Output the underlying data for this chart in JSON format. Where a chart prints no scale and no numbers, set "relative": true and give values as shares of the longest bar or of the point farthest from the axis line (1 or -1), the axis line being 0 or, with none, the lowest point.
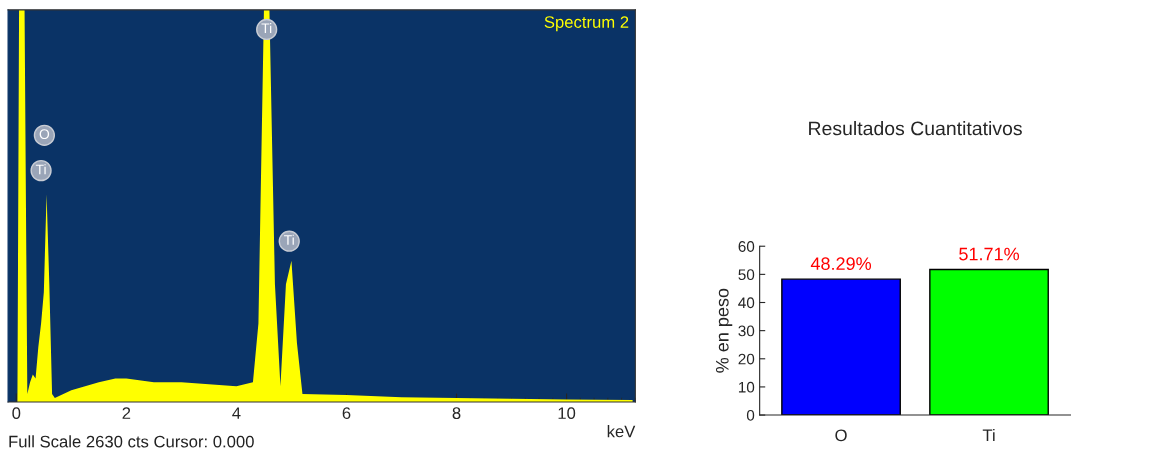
{
  "chart_data": [
    {
      "type": "area",
      "relative": true,
      "xlabel": "keV",
      "xlim": [
        -0.15,
        11.25
      ],
      "xticks": [
        0,
        2,
        4,
        6,
        8,
        10
      ],
      "grid": false,
      "legend": false,
      "x": [
        0.02,
        0.05,
        0.15,
        0.2,
        0.25,
        0.3,
        0.35,
        0.4,
        0.45,
        0.5,
        0.55,
        0.6,
        0.65,
        0.7,
        1.0,
        1.5,
        1.8,
        2.0,
        2.5,
        3.0,
        3.5,
        4.0,
        4.3,
        4.4,
        4.5,
        4.6,
        4.7,
        4.8,
        4.9,
        5.0,
        5.1,
        5.2,
        6,
        7,
        8,
        9,
        10,
        11.2
      ],
      "series": [
        {
          "color": "#ffff00",
          "values": [
            0,
            1,
            1,
            0.02,
            0.05,
            0.07,
            0.06,
            0.14,
            0.2,
            0.28,
            0.53,
            0.3,
            0.02,
            0.01,
            0.03,
            0.05,
            0.06,
            0.06,
            0.05,
            0.05,
            0.045,
            0.04,
            0.05,
            0.2,
            1,
            1,
            0.3,
            0.04,
            0.3,
            0.36,
            0.15,
            0.02,
            0.018,
            0.012,
            0.01,
            0.008,
            0.006,
            0.005
          ]
        }
      ],
      "annotations": [
        "Spectrum 2",
        "Full Scale 2630 cts Cursor: 0.000",
        {
          "text": "O",
          "x": 0.51,
          "y": 0.68
        },
        {
          "text": "Ti",
          "x": 0.45,
          "y": 0.59
        },
        {
          "text": "Ti",
          "x": 4.55,
          "y": 0.95
        },
        {
          "text": "Ti",
          "x": 4.96,
          "y": 0.41
        }
      ]
    },
    {
      "type": "bar",
      "title": "Resultados Cuantitativos",
      "ylabel": "% en peso",
      "categories": [
        "O",
        "Ti"
      ],
      "values": [
        48.29,
        51.71
      ],
      "colors": [
        "#0000ff",
        "#00ff00"
      ],
      "value_labels": [
        "48.29%",
        "51.71%"
      ],
      "ylim": [
        0,
        60
      ],
      "yticks": [
        0,
        10,
        20,
        30,
        40,
        50,
        60
      ],
      "grid": false,
      "legend": false
    }
  ]
}
